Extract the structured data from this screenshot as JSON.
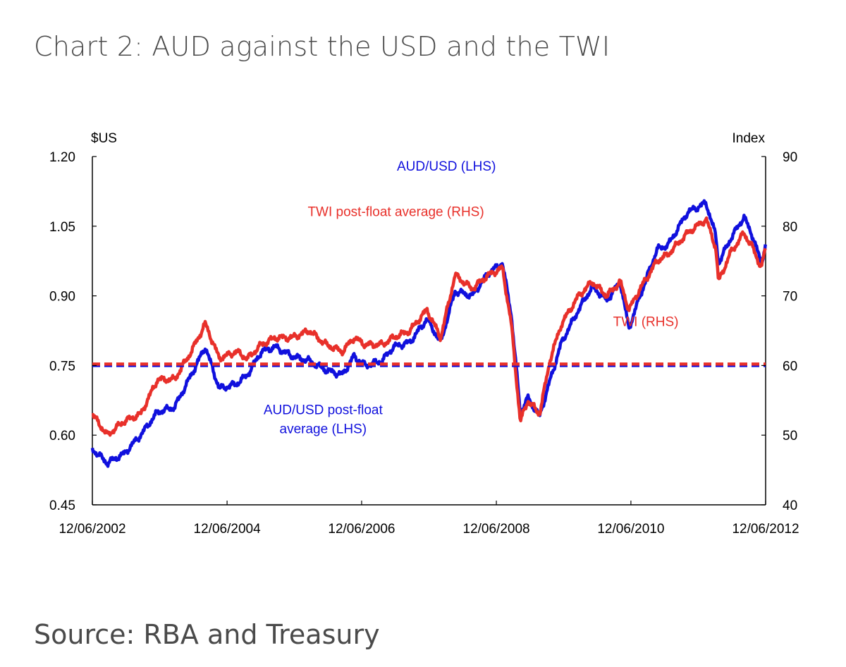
{
  "page": {
    "title": "Chart 2: AUD against the USD and the TWI",
    "source": "Source: RBA and Treasury"
  },
  "chart_data": {
    "type": "line",
    "grid": false,
    "left_axis": {
      "unit": "$US",
      "range": [
        0.45,
        1.2
      ],
      "ticks": [
        "1.20",
        "1.05",
        "0.90",
        "0.75",
        "0.60",
        "0.45"
      ]
    },
    "right_axis": {
      "unit": "Index",
      "range": [
        40,
        90
      ],
      "ticks": [
        "90",
        "80",
        "70",
        "60",
        "50",
        "40"
      ]
    },
    "x_range": [
      "2002-06-12",
      "2012-06-12"
    ],
    "x_ticks": [
      "12/06/2002",
      "12/06/2004",
      "12/06/2006",
      "12/06/2008",
      "12/06/2010",
      "12/06/2012"
    ],
    "colors": {
      "audusd": "#1010dd",
      "twi": "#e8302a",
      "axis": "#000000"
    },
    "series": [
      {
        "name": "AUD/USD (LHS)",
        "axis": "left",
        "color": "#1010dd",
        "points": [
          [
            "2002-06-12",
            0.57
          ],
          [
            "2002-09-01",
            0.54
          ],
          [
            "2002-12-01",
            0.56
          ],
          [
            "2003-03-01",
            0.6
          ],
          [
            "2003-06-01",
            0.65
          ],
          [
            "2003-09-01",
            0.66
          ],
          [
            "2003-12-01",
            0.73
          ],
          [
            "2004-02-15",
            0.79
          ],
          [
            "2004-05-01",
            0.7
          ],
          [
            "2004-08-01",
            0.71
          ],
          [
            "2004-10-01",
            0.73
          ],
          [
            "2004-12-15",
            0.78
          ],
          [
            "2005-03-01",
            0.79
          ],
          [
            "2005-06-01",
            0.77
          ],
          [
            "2005-09-01",
            0.76
          ],
          [
            "2005-12-01",
            0.74
          ],
          [
            "2006-03-01",
            0.73
          ],
          [
            "2006-05-01",
            0.77
          ],
          [
            "2006-07-01",
            0.75
          ],
          [
            "2006-10-01",
            0.76
          ],
          [
            "2006-12-01",
            0.79
          ],
          [
            "2007-03-01",
            0.8
          ],
          [
            "2007-06-01",
            0.85
          ],
          [
            "2007-08-15",
            0.8
          ],
          [
            "2007-11-01",
            0.91
          ],
          [
            "2008-02-01",
            0.9
          ],
          [
            "2008-05-01",
            0.95
          ],
          [
            "2008-07-15",
            0.97
          ],
          [
            "2008-09-01",
            0.86
          ],
          [
            "2008-10-20",
            0.65
          ],
          [
            "2008-12-01",
            0.68
          ],
          [
            "2009-02-01",
            0.64
          ],
          [
            "2009-04-01",
            0.72
          ],
          [
            "2009-06-01",
            0.8
          ],
          [
            "2009-09-01",
            0.87
          ],
          [
            "2009-11-15",
            0.92
          ],
          [
            "2010-02-01",
            0.89
          ],
          [
            "2010-04-15",
            0.93
          ],
          [
            "2010-06-01",
            0.83
          ],
          [
            "2010-08-01",
            0.9
          ],
          [
            "2010-11-01",
            1.0
          ],
          [
            "2011-01-01",
            1.01
          ],
          [
            "2011-04-15",
            1.08
          ],
          [
            "2011-07-25",
            1.1
          ],
          [
            "2011-09-15",
            1.03
          ],
          [
            "2011-10-01",
            0.97
          ],
          [
            "2011-12-01",
            1.02
          ],
          [
            "2012-02-15",
            1.07
          ],
          [
            "2012-04-01",
            1.03
          ],
          [
            "2012-05-20",
            0.97
          ],
          [
            "2012-06-12",
            1.01
          ]
        ]
      },
      {
        "name": "TWI (RHS)",
        "axis": "right",
        "color": "#e8302a",
        "points": [
          [
            "2002-06-12",
            53
          ],
          [
            "2002-09-01",
            50
          ],
          [
            "2002-12-01",
            52
          ],
          [
            "2003-03-01",
            53
          ],
          [
            "2003-06-01",
            58
          ],
          [
            "2003-09-01",
            58
          ],
          [
            "2003-12-01",
            62
          ],
          [
            "2004-02-15",
            66
          ],
          [
            "2004-05-01",
            61
          ],
          [
            "2004-08-01",
            62
          ],
          [
            "2004-10-01",
            61
          ],
          [
            "2004-12-15",
            63
          ],
          [
            "2005-03-01",
            64
          ],
          [
            "2005-06-01",
            64
          ],
          [
            "2005-09-01",
            65
          ],
          [
            "2005-12-01",
            63
          ],
          [
            "2006-03-01",
            62
          ],
          [
            "2006-05-01",
            64
          ],
          [
            "2006-07-01",
            63
          ],
          [
            "2006-10-01",
            63
          ],
          [
            "2006-12-01",
            64
          ],
          [
            "2007-03-01",
            65
          ],
          [
            "2007-06-01",
            68
          ],
          [
            "2007-08-15",
            64
          ],
          [
            "2007-11-01",
            73
          ],
          [
            "2008-02-01",
            71
          ],
          [
            "2008-05-01",
            73
          ],
          [
            "2008-07-15",
            74
          ],
          [
            "2008-09-01",
            66
          ],
          [
            "2008-10-20",
            52
          ],
          [
            "2008-12-01",
            55
          ],
          [
            "2009-02-01",
            53
          ],
          [
            "2009-04-01",
            61
          ],
          [
            "2009-06-01",
            66
          ],
          [
            "2009-09-01",
            70
          ],
          [
            "2009-11-15",
            72
          ],
          [
            "2010-02-01",
            70
          ],
          [
            "2010-04-15",
            72
          ],
          [
            "2010-06-01",
            68
          ],
          [
            "2010-08-01",
            71
          ],
          [
            "2010-11-01",
            75
          ],
          [
            "2011-01-01",
            76
          ],
          [
            "2011-04-15",
            79
          ],
          [
            "2011-07-25",
            81
          ],
          [
            "2011-09-15",
            77
          ],
          [
            "2011-10-01",
            72
          ],
          [
            "2011-12-01",
            76
          ],
          [
            "2012-02-15",
            79
          ],
          [
            "2012-04-01",
            77
          ],
          [
            "2012-05-20",
            74
          ],
          [
            "2012-06-12",
            77
          ]
        ]
      },
      {
        "name": "AUD/USD post-float average (LHS)",
        "axis": "left",
        "color": "#1010dd",
        "dashed": true,
        "value": 0.75
      },
      {
        "name": "TWI post-float average (RHS)",
        "axis": "right",
        "color": "#e8302a",
        "dashed": true,
        "value": 60.2
      }
    ],
    "annotations": [
      {
        "series": "AUD/USD (LHS)",
        "lines": [
          "AUD/USD (LHS)"
        ],
        "color": "#1010dd",
        "anchor": [
          "2007-09-15",
          1.17
        ]
      },
      {
        "series": "TWI post-float average (RHS)",
        "lines": [
          "TWI post-float average (RHS)"
        ],
        "color": "#e8302a",
        "anchor": [
          "2006-12-15",
          1.072
        ]
      },
      {
        "series": "TWI (RHS)",
        "lines": [
          "TWI (RHS)"
        ],
        "color": "#e8302a",
        "anchor": [
          "2010-09-01",
          0.835
        ]
      },
      {
        "series": "AUD/USD post-float average (LHS)",
        "lines": [
          "AUD/USD post-float",
          "average (LHS)"
        ],
        "color": "#1010dd",
        "anchor": [
          "2005-11-15",
          0.645
        ]
      }
    ]
  }
}
